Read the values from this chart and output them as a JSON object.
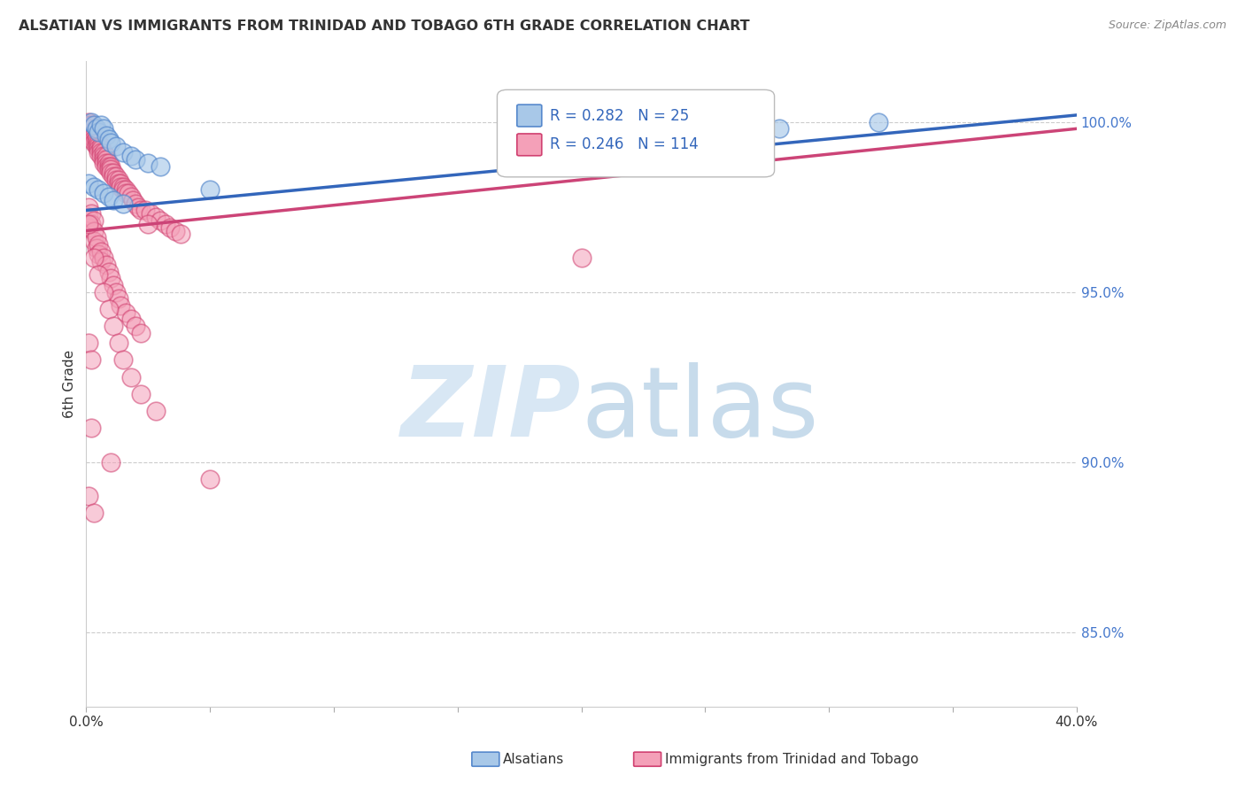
{
  "title": "ALSATIAN VS IMMIGRANTS FROM TRINIDAD AND TOBAGO 6TH GRADE CORRELATION CHART",
  "source": "Source: ZipAtlas.com",
  "ylabel": "6th Grade",
  "blue_R": 0.282,
  "blue_N": 25,
  "pink_R": 0.246,
  "pink_N": 114,
  "blue_color": "#a8c8e8",
  "pink_color": "#f4a0b8",
  "blue_edge_color": "#5588cc",
  "pink_edge_color": "#d04070",
  "blue_line_color": "#3366bb",
  "pink_line_color": "#cc4477",
  "legend_blue_label": "Alsatians",
  "legend_pink_label": "Immigrants from Trinidad and Tobago",
  "y_tick_labels": [
    "85.0%",
    "90.0%",
    "95.0%",
    "100.0%"
  ],
  "y_tick_values": [
    0.85,
    0.9,
    0.95,
    1.0
  ],
  "x_range": [
    0.0,
    0.4
  ],
  "y_range": [
    0.828,
    1.018
  ],
  "blue_trend_x": [
    0.0,
    0.4
  ],
  "blue_trend_y": [
    0.974,
    1.002
  ],
  "pink_trend_x": [
    0.0,
    0.4
  ],
  "pink_trend_y": [
    0.968,
    0.998
  ],
  "blue_x": [
    0.002,
    0.003,
    0.004,
    0.005,
    0.006,
    0.007,
    0.008,
    0.009,
    0.01,
    0.012,
    0.015,
    0.018,
    0.02,
    0.025,
    0.03,
    0.001,
    0.003,
    0.005,
    0.007,
    0.009,
    0.011,
    0.015,
    0.05,
    0.28,
    0.32
  ],
  "blue_y": [
    1.0,
    0.999,
    0.998,
    0.997,
    0.999,
    0.998,
    0.996,
    0.995,
    0.994,
    0.993,
    0.991,
    0.99,
    0.989,
    0.988,
    0.987,
    0.982,
    0.981,
    0.98,
    0.979,
    0.978,
    0.977,
    0.976,
    0.98,
    0.998,
    1.0
  ],
  "pink_x": [
    0.001,
    0.001,
    0.001,
    0.002,
    0.002,
    0.002,
    0.002,
    0.002,
    0.003,
    0.003,
    0.003,
    0.003,
    0.004,
    0.004,
    0.004,
    0.004,
    0.005,
    0.005,
    0.005,
    0.005,
    0.006,
    0.006,
    0.006,
    0.006,
    0.007,
    0.007,
    0.007,
    0.007,
    0.008,
    0.008,
    0.008,
    0.008,
    0.009,
    0.009,
    0.009,
    0.01,
    0.01,
    0.01,
    0.011,
    0.011,
    0.012,
    0.012,
    0.013,
    0.013,
    0.014,
    0.014,
    0.015,
    0.015,
    0.016,
    0.016,
    0.017,
    0.018,
    0.019,
    0.02,
    0.021,
    0.022,
    0.024,
    0.026,
    0.028,
    0.03,
    0.032,
    0.034,
    0.036,
    0.038,
    0.001,
    0.001,
    0.001,
    0.002,
    0.002,
    0.003,
    0.003,
    0.003,
    0.004,
    0.004,
    0.005,
    0.005,
    0.006,
    0.006,
    0.007,
    0.008,
    0.009,
    0.01,
    0.011,
    0.012,
    0.013,
    0.014,
    0.016,
    0.018,
    0.02,
    0.022,
    0.003,
    0.005,
    0.007,
    0.009,
    0.011,
    0.013,
    0.015,
    0.018,
    0.022,
    0.028,
    0.001,
    0.002,
    0.001,
    0.025,
    0.002,
    0.01,
    0.05,
    0.2,
    0.001,
    0.003
  ],
  "pink_y": [
    1.0,
    0.999,
    0.998,
    0.999,
    0.998,
    0.997,
    0.996,
    0.995,
    0.997,
    0.996,
    0.995,
    0.994,
    0.996,
    0.995,
    0.994,
    0.993,
    0.994,
    0.993,
    0.992,
    0.991,
    0.993,
    0.992,
    0.991,
    0.99,
    0.991,
    0.99,
    0.989,
    0.988,
    0.99,
    0.989,
    0.988,
    0.987,
    0.988,
    0.987,
    0.986,
    0.987,
    0.986,
    0.985,
    0.985,
    0.984,
    0.984,
    0.983,
    0.983,
    0.982,
    0.982,
    0.981,
    0.981,
    0.98,
    0.98,
    0.979,
    0.979,
    0.978,
    0.977,
    0.976,
    0.975,
    0.974,
    0.974,
    0.973,
    0.972,
    0.971,
    0.97,
    0.969,
    0.968,
    0.967,
    0.975,
    0.972,
    0.969,
    0.973,
    0.97,
    0.971,
    0.968,
    0.965,
    0.966,
    0.963,
    0.964,
    0.961,
    0.962,
    0.959,
    0.96,
    0.958,
    0.956,
    0.954,
    0.952,
    0.95,
    0.948,
    0.946,
    0.944,
    0.942,
    0.94,
    0.938,
    0.96,
    0.955,
    0.95,
    0.945,
    0.94,
    0.935,
    0.93,
    0.925,
    0.92,
    0.915,
    0.935,
    0.93,
    0.97,
    0.97,
    0.91,
    0.9,
    0.895,
    0.96,
    0.89,
    0.885
  ]
}
